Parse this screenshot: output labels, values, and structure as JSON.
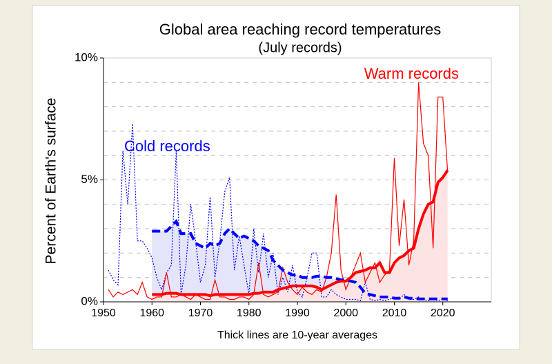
{
  "chart_data": {
    "type": "line",
    "title": "Global area reaching record temperatures",
    "subtitle": "(July records)",
    "y_label": "Percent of Earth's surface",
    "x_label": "Thick lines are 10-year averages",
    "x": [
      1951,
      1952,
      1953,
      1954,
      1955,
      1956,
      1957,
      1958,
      1959,
      1960,
      1961,
      1962,
      1963,
      1964,
      1965,
      1966,
      1967,
      1968,
      1969,
      1970,
      1971,
      1972,
      1973,
      1974,
      1975,
      1976,
      1977,
      1978,
      1979,
      1980,
      1981,
      1982,
      1983,
      1984,
      1985,
      1986,
      1987,
      1988,
      1989,
      1990,
      1991,
      1992,
      1993,
      1994,
      1995,
      1996,
      1997,
      1998,
      1999,
      2000,
      2001,
      2002,
      2003,
      2004,
      2005,
      2006,
      2007,
      2008,
      2009,
      2010,
      2011,
      2012,
      2013,
      2014,
      2015,
      2016,
      2017,
      2018,
      2019,
      2020,
      2021
    ],
    "series": [
      {
        "name": "Cold records",
        "color": "#0000ff",
        "fill": "#e4e4fb",
        "values": [
          1.3,
          0.9,
          0.7,
          6.2,
          4.0,
          7.3,
          2.5,
          2.5,
          2.2,
          1.8,
          1.0,
          0.5,
          1.2,
          1.5,
          6.2,
          0.3,
          1.5,
          4.0,
          2.5,
          0.8,
          1.5,
          4.3,
          1.0,
          2.5,
          4.5,
          5.1,
          1.3,
          2.7,
          1.5,
          0.3,
          3.0,
          1.2,
          2.8,
          1.0,
          2.0,
          0.3,
          1.0,
          0.4,
          1.5,
          0.4,
          0.2,
          1.0,
          2.0,
          2.0,
          0.2,
          0.2,
          0.5,
          0.3,
          0.2,
          0.1,
          0.1,
          0.1,
          0.05,
          0.8,
          0.1,
          0.05,
          0.1,
          0.05,
          0.1,
          0.2,
          0.1,
          0.3,
          0.1,
          0.1,
          0.2,
          0.1,
          0.05,
          0.1,
          0.05,
          0.1,
          0.05
        ],
        "averages": [
          null,
          null,
          null,
          null,
          null,
          null,
          null,
          null,
          null,
          2.9,
          2.9,
          2.9,
          2.9,
          3.1,
          3.3,
          2.8,
          2.8,
          2.8,
          2.4,
          2.3,
          2.2,
          2.4,
          2.3,
          2.4,
          2.8,
          3.0,
          2.8,
          2.6,
          2.7,
          2.6,
          2.5,
          2.3,
          2.2,
          2.1,
          1.7,
          1.5,
          1.3,
          1.2,
          1.1,
          1.1,
          1.0,
          1.0,
          1.0,
          1.05,
          1.05,
          1.0,
          1.0,
          0.95,
          0.9,
          0.9,
          0.85,
          0.8,
          0.6,
          0.35,
          0.3,
          0.25,
          0.2,
          0.2,
          0.2,
          0.15,
          0.15,
          0.2,
          0.15,
          0.15,
          0.12,
          0.12,
          0.12,
          0.12,
          0.12,
          0.12,
          0.12
        ]
      },
      {
        "name": "Warm records",
        "color": "#ff0000",
        "fill": "#fde4e4",
        "values": [
          0.5,
          0.2,
          0.4,
          0.3,
          0.4,
          0.5,
          0.3,
          0.8,
          0.2,
          0.1,
          0.2,
          0.2,
          1.2,
          0.2,
          0.2,
          0.3,
          0.2,
          0.1,
          0.3,
          0.2,
          0.1,
          0.1,
          0.9,
          0.2,
          0.2,
          0.1,
          0.1,
          0.2,
          0.2,
          0.1,
          0.3,
          1.6,
          0.3,
          0.2,
          0.3,
          0.4,
          1.4,
          0.8,
          0.5,
          0.3,
          0.6,
          0.4,
          0.3,
          0.5,
          0.4,
          1.0,
          2.0,
          4.4,
          1.3,
          0.5,
          1.0,
          1.5,
          2.0,
          0.8,
          1.2,
          1.6,
          0.8,
          1.1,
          1.3,
          5.9,
          2.3,
          4.2,
          1.5,
          2.5,
          9.0,
          6.5,
          6.0,
          2.2,
          8.4,
          8.4,
          5.3
        ],
        "averages": [
          null,
          null,
          null,
          null,
          null,
          null,
          null,
          null,
          null,
          0.3,
          0.3,
          0.3,
          0.35,
          0.35,
          0.35,
          0.3,
          0.3,
          0.3,
          0.3,
          0.3,
          0.3,
          0.25,
          0.3,
          0.3,
          0.3,
          0.3,
          0.3,
          0.3,
          0.3,
          0.3,
          0.35,
          0.35,
          0.4,
          0.4,
          0.4,
          0.5,
          0.55,
          0.6,
          0.65,
          0.65,
          0.65,
          0.65,
          0.65,
          0.6,
          0.5,
          0.6,
          0.7,
          0.8,
          0.85,
          0.85,
          1.0,
          1.2,
          1.25,
          1.3,
          1.4,
          1.4,
          1.6,
          1.2,
          1.2,
          1.6,
          1.8,
          1.9,
          2.1,
          2.2,
          3.0,
          3.6,
          4.0,
          4.1,
          4.9,
          5.1,
          5.4
        ]
      }
    ],
    "xlim": [
      1950,
      2030
    ],
    "xticks": [
      1950,
      1960,
      1970,
      1980,
      1990,
      2000,
      2010,
      2020
    ],
    "ylim": [
      0,
      10
    ],
    "yticks": [
      {
        "value": 0,
        "label": "0%"
      },
      {
        "value": 5,
        "label": "5%"
      },
      {
        "value": 10,
        "label": "10%"
      }
    ],
    "ygrid": [
      1,
      2,
      3,
      4,
      5,
      6,
      7,
      8,
      9
    ]
  }
}
